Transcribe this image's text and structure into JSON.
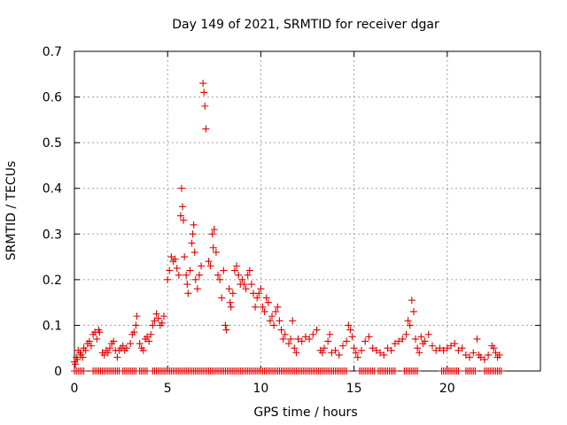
{
  "chart_data": {
    "type": "scatter",
    "title": "Day 149 of 2021, SRMTID for receiver dgar",
    "xlabel": "GPS time / hours",
    "ylabel": "SRMTID / TECUs",
    "xlim": [
      0,
      25
    ],
    "ylim": [
      0,
      0.7
    ],
    "xticks": [
      0,
      5,
      10,
      15,
      20
    ],
    "xtick_labels": [
      "0",
      "5",
      "10",
      "15",
      "20"
    ],
    "yticks": [
      0,
      0.1,
      0.2,
      0.3,
      0.4,
      0.5,
      0.6,
      0.7
    ],
    "ytick_labels": [
      "0",
      "0.1",
      "0.2",
      "0.3",
      "0.4",
      "0.5",
      "0.6",
      "0.7"
    ],
    "grid": true,
    "marker": "+",
    "color": "#e00000",
    "series": [
      {
        "name": "SRMTID",
        "points": [
          [
            0.0,
            0.02
          ],
          [
            0.05,
            0.015
          ],
          [
            0.1,
            0.03
          ],
          [
            0.15,
            0.025
          ],
          [
            0.2,
            0.045
          ],
          [
            0.3,
            0.04
          ],
          [
            0.35,
            0.035
          ],
          [
            0.45,
            0.03
          ],
          [
            0.5,
            0.05
          ],
          [
            0.6,
            0.045
          ],
          [
            0.7,
            0.06
          ],
          [
            0.8,
            0.065
          ],
          [
            0.9,
            0.055
          ],
          [
            1.0,
            0.08
          ],
          [
            1.1,
            0.085
          ],
          [
            1.2,
            0.07
          ],
          [
            1.3,
            0.09
          ],
          [
            1.35,
            0.085
          ],
          [
            1.5,
            0.04
          ],
          [
            1.6,
            0.035
          ],
          [
            1.7,
            0.045
          ],
          [
            1.8,
            0.04
          ],
          [
            1.9,
            0.05
          ],
          [
            2.0,
            0.06
          ],
          [
            2.1,
            0.065
          ],
          [
            2.2,
            0.045
          ],
          [
            2.3,
            0.03
          ],
          [
            2.4,
            0.045
          ],
          [
            2.5,
            0.05
          ],
          [
            2.6,
            0.055
          ],
          [
            2.7,
            0.045
          ],
          [
            2.8,
            0.05
          ],
          [
            3.0,
            0.06
          ],
          [
            3.1,
            0.08
          ],
          [
            3.2,
            0.085
          ],
          [
            3.3,
            0.1
          ],
          [
            3.35,
            0.12
          ],
          [
            3.5,
            0.06
          ],
          [
            3.6,
            0.05
          ],
          [
            3.7,
            0.045
          ],
          [
            3.8,
            0.07
          ],
          [
            3.9,
            0.075
          ],
          [
            4.0,
            0.065
          ],
          [
            4.1,
            0.08
          ],
          [
            4.2,
            0.1
          ],
          [
            4.3,
            0.11
          ],
          [
            4.4,
            0.125
          ],
          [
            4.5,
            0.115
          ],
          [
            4.6,
            0.1
          ],
          [
            4.7,
            0.105
          ],
          [
            4.8,
            0.12
          ],
          [
            5.0,
            0.2
          ],
          [
            5.1,
            0.22
          ],
          [
            5.2,
            0.25
          ],
          [
            5.3,
            0.24
          ],
          [
            5.4,
            0.245
          ],
          [
            5.5,
            0.225
          ],
          [
            5.6,
            0.21
          ],
          [
            5.7,
            0.34
          ],
          [
            5.75,
            0.4
          ],
          [
            5.8,
            0.36
          ],
          [
            5.85,
            0.33
          ],
          [
            5.9,
            0.25
          ],
          [
            6.0,
            0.21
          ],
          [
            6.05,
            0.19
          ],
          [
            6.1,
            0.17
          ],
          [
            6.2,
            0.22
          ],
          [
            6.3,
            0.28
          ],
          [
            6.35,
            0.3
          ],
          [
            6.4,
            0.32
          ],
          [
            6.45,
            0.26
          ],
          [
            6.5,
            0.2
          ],
          [
            6.6,
            0.18
          ],
          [
            6.7,
            0.21
          ],
          [
            6.8,
            0.23
          ],
          [
            6.9,
            0.63
          ],
          [
            6.95,
            0.61
          ],
          [
            7.0,
            0.58
          ],
          [
            7.05,
            0.53
          ],
          [
            7.2,
            0.24
          ],
          [
            7.3,
            0.23
          ],
          [
            7.4,
            0.3
          ],
          [
            7.45,
            0.27
          ],
          [
            7.5,
            0.31
          ],
          [
            7.6,
            0.26
          ],
          [
            7.7,
            0.21
          ],
          [
            7.8,
            0.2
          ],
          [
            7.9,
            0.16
          ],
          [
            8.0,
            0.22
          ],
          [
            8.1,
            0.1
          ],
          [
            8.15,
            0.09
          ],
          [
            8.3,
            0.18
          ],
          [
            8.35,
            0.15
          ],
          [
            8.4,
            0.14
          ],
          [
            8.5,
            0.17
          ],
          [
            8.6,
            0.22
          ],
          [
            8.7,
            0.23
          ],
          [
            8.8,
            0.21
          ],
          [
            8.9,
            0.19
          ],
          [
            9.0,
            0.2
          ],
          [
            9.1,
            0.19
          ],
          [
            9.2,
            0.18
          ],
          [
            9.3,
            0.21
          ],
          [
            9.4,
            0.22
          ],
          [
            9.5,
            0.19
          ],
          [
            9.6,
            0.17
          ],
          [
            9.7,
            0.14
          ],
          [
            9.8,
            0.16
          ],
          [
            9.9,
            0.17
          ],
          [
            10.0,
            0.18
          ],
          [
            10.1,
            0.14
          ],
          [
            10.2,
            0.13
          ],
          [
            10.3,
            0.16
          ],
          [
            10.4,
            0.15
          ],
          [
            10.5,
            0.11
          ],
          [
            10.6,
            0.12
          ],
          [
            10.7,
            0.1
          ],
          [
            10.8,
            0.13
          ],
          [
            10.9,
            0.14
          ],
          [
            11.0,
            0.11
          ],
          [
            11.1,
            0.09
          ],
          [
            11.2,
            0.07
          ],
          [
            11.3,
            0.08
          ],
          [
            11.5,
            0.06
          ],
          [
            11.6,
            0.07
          ],
          [
            11.7,
            0.11
          ],
          [
            11.8,
            0.05
          ],
          [
            11.9,
            0.04
          ],
          [
            12.0,
            0.07
          ],
          [
            12.2,
            0.065
          ],
          [
            12.4,
            0.075
          ],
          [
            12.6,
            0.07
          ],
          [
            12.8,
            0.08
          ],
          [
            13.0,
            0.09
          ],
          [
            13.2,
            0.045
          ],
          [
            13.3,
            0.04
          ],
          [
            13.4,
            0.05
          ],
          [
            13.6,
            0.065
          ],
          [
            13.7,
            0.08
          ],
          [
            13.8,
            0.04
          ],
          [
            14.0,
            0.045
          ],
          [
            14.2,
            0.035
          ],
          [
            14.4,
            0.055
          ],
          [
            14.6,
            0.065
          ],
          [
            14.7,
            0.1
          ],
          [
            14.8,
            0.09
          ],
          [
            14.9,
            0.075
          ],
          [
            15.0,
            0.05
          ],
          [
            15.1,
            0.04
          ],
          [
            15.2,
            0.03
          ],
          [
            15.4,
            0.045
          ],
          [
            15.6,
            0.065
          ],
          [
            15.8,
            0.075
          ],
          [
            16.0,
            0.05
          ],
          [
            16.2,
            0.045
          ],
          [
            16.4,
            0.04
          ],
          [
            16.6,
            0.035
          ],
          [
            16.8,
            0.05
          ],
          [
            17.0,
            0.045
          ],
          [
            17.2,
            0.06
          ],
          [
            17.4,
            0.065
          ],
          [
            17.6,
            0.07
          ],
          [
            17.8,
            0.08
          ],
          [
            17.9,
            0.11
          ],
          [
            18.0,
            0.1
          ],
          [
            18.1,
            0.155
          ],
          [
            18.2,
            0.13
          ],
          [
            18.3,
            0.07
          ],
          [
            18.4,
            0.05
          ],
          [
            18.5,
            0.04
          ],
          [
            18.6,
            0.075
          ],
          [
            18.7,
            0.06
          ],
          [
            18.8,
            0.065
          ],
          [
            19.0,
            0.08
          ],
          [
            19.2,
            0.055
          ],
          [
            19.4,
            0.045
          ],
          [
            19.6,
            0.05
          ],
          [
            19.8,
            0.045
          ],
          [
            20.0,
            0.05
          ],
          [
            20.2,
            0.055
          ],
          [
            20.4,
            0.06
          ],
          [
            20.6,
            0.045
          ],
          [
            20.8,
            0.05
          ],
          [
            21.0,
            0.035
          ],
          [
            21.2,
            0.03
          ],
          [
            21.4,
            0.04
          ],
          [
            21.6,
            0.07
          ],
          [
            21.7,
            0.035
          ],
          [
            21.8,
            0.03
          ],
          [
            22.0,
            0.025
          ],
          [
            22.2,
            0.035
          ],
          [
            22.4,
            0.055
          ],
          [
            22.5,
            0.05
          ],
          [
            22.6,
            0.04
          ],
          [
            22.7,
            0.03
          ],
          [
            22.8,
            0.035
          ]
        ],
        "zero_ranges": [
          [
            0.0,
            0.5
          ],
          [
            1.0,
            2.4
          ],
          [
            2.6,
            3.3
          ],
          [
            3.5,
            3.9
          ],
          [
            4.2,
            14.6
          ],
          [
            15.3,
            16.1
          ],
          [
            16.3,
            17.2
          ],
          [
            17.7,
            18.4
          ],
          [
            19.7,
            20.6
          ],
          [
            21.0,
            21.5
          ],
          [
            22.0,
            22.9
          ]
        ]
      }
    ]
  }
}
